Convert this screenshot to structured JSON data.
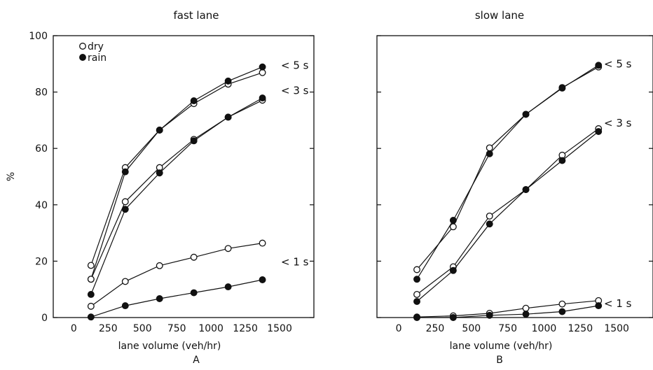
{
  "chart_data": [
    {
      "type": "line",
      "title": "fast lane",
      "xlabel": "lane volume (veh/hr)",
      "ylabel": "%",
      "panel_label": "A",
      "xlim": [
        -150,
        1750
      ],
      "ylim": [
        0,
        100
      ],
      "x_ticks": [
        0,
        250,
        500,
        750,
        1000,
        1250,
        1500
      ],
      "y_ticks": [
        0,
        20,
        40,
        60,
        80,
        100
      ],
      "legend": {
        "position": "top-left",
        "entries": [
          {
            "label": "dry",
            "marker": "open-circle"
          },
          {
            "label": "rain",
            "marker": "filled-circle"
          }
        ]
      },
      "x": [
        125,
        375,
        625,
        875,
        1125,
        1375
      ],
      "series": [
        {
          "group": "< 5 s",
          "condition": "dry",
          "marker": "open",
          "values": [
            18.5,
            53.2,
            66.5,
            75.9,
            82.8,
            86.9
          ]
        },
        {
          "group": "< 5 s",
          "condition": "rain",
          "marker": "filled",
          "values": [
            13.6,
            51.7,
            66.5,
            76.9,
            83.9,
            88.9
          ]
        },
        {
          "group": "< 3 s",
          "condition": "dry",
          "marker": "open",
          "values": [
            13.6,
            41.1,
            53.2,
            63.2,
            71.1,
            77.1
          ]
        },
        {
          "group": "< 3 s",
          "condition": "rain",
          "marker": "filled",
          "values": [
            8.2,
            38.4,
            51.3,
            62.7,
            71.1,
            77.9
          ]
        },
        {
          "group": "< 1 s",
          "condition": "dry",
          "marker": "open",
          "values": [
            4.0,
            12.8,
            18.4,
            21.4,
            24.5,
            26.4
          ]
        },
        {
          "group": "< 1 s",
          "condition": "rain",
          "marker": "filled",
          "values": [
            0.2,
            4.2,
            6.7,
            8.8,
            10.9,
            13.4
          ]
        }
      ],
      "annotations": [
        {
          "text": "< 5 s",
          "y": 89.5
        },
        {
          "text": "< 3 s",
          "y": 80.5
        },
        {
          "text": "< 1 s",
          "y": 19.7
        }
      ]
    },
    {
      "type": "line",
      "title": "slow lane",
      "xlabel": "lane volume (veh/hr)",
      "ylabel": "",
      "panel_label": "B",
      "xlim": [
        -150,
        1750
      ],
      "ylim": [
        0,
        100
      ],
      "x_ticks": [
        0,
        250,
        500,
        750,
        1000,
        1250,
        1500
      ],
      "y_ticks": [
        0,
        20,
        40,
        60,
        80,
        100
      ],
      "x": [
        125,
        375,
        625,
        875,
        1125,
        1375
      ],
      "series": [
        {
          "group": "< 5 s",
          "condition": "dry",
          "marker": "open",
          "values": [
            17.0,
            32.2,
            60.2,
            72.1,
            81.6,
            88.9
          ]
        },
        {
          "group": "< 5 s",
          "condition": "rain",
          "marker": "filled",
          "values": [
            13.6,
            34.5,
            58.1,
            72.1,
            81.4,
            89.5
          ]
        },
        {
          "group": "< 3 s",
          "condition": "dry",
          "marker": "open",
          "values": [
            8.2,
            18.0,
            36.0,
            45.4,
            57.6,
            67.0
          ]
        },
        {
          "group": "< 3 s",
          "condition": "rain",
          "marker": "filled",
          "values": [
            5.7,
            16.7,
            33.2,
            45.4,
            55.7,
            66.0
          ]
        },
        {
          "group": "< 1 s",
          "condition": "dry",
          "marker": "open",
          "values": [
            0.2,
            0.6,
            1.5,
            3.3,
            4.8,
            6.0
          ]
        },
        {
          "group": "< 1 s",
          "condition": "rain",
          "marker": "filled",
          "values": [
            0.0,
            0.0,
            0.8,
            1.2,
            2.1,
            4.2
          ]
        }
      ],
      "annotations": [
        {
          "text": "< 5 s",
          "y": 89.9
        },
        {
          "text": "< 3 s",
          "y": 69.0
        },
        {
          "text": "< 1 s",
          "y": 5.0
        }
      ]
    }
  ]
}
